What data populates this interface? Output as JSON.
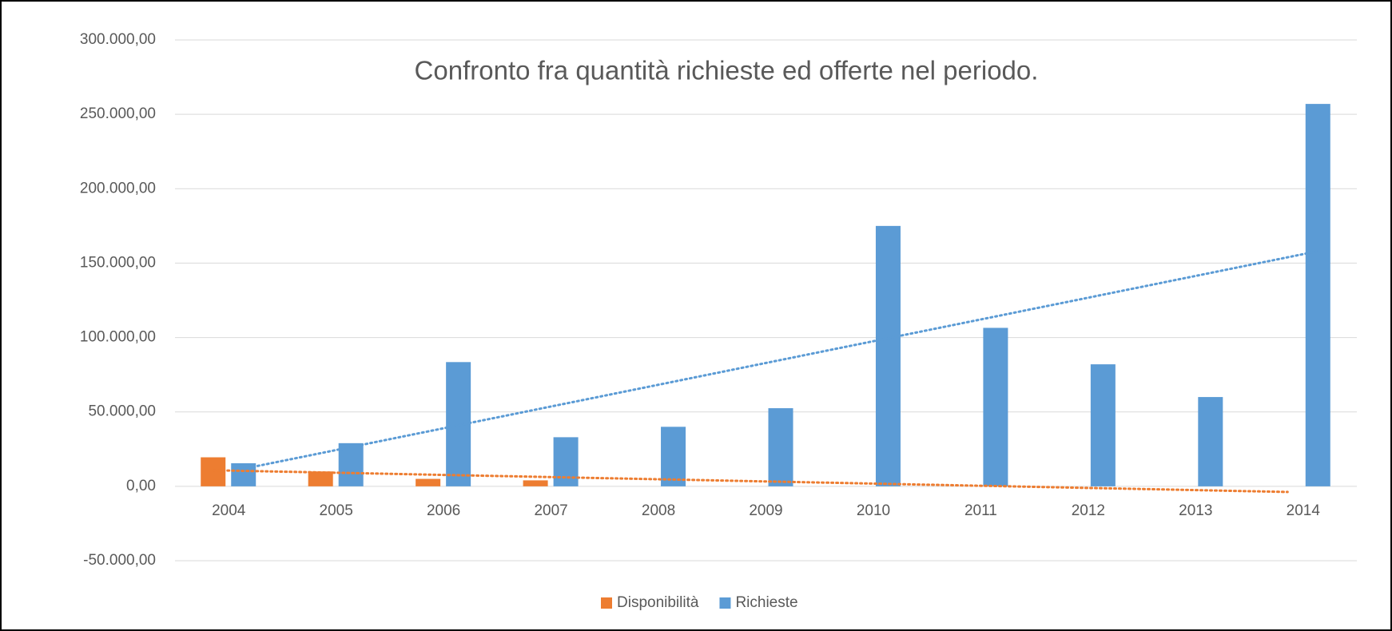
{
  "chart_data": {
    "type": "bar",
    "title": "Confronto fra quantità richieste ed offerte nel periodo.",
    "categories": [
      "2004",
      "2005",
      "2006",
      "2007",
      "2008",
      "2009",
      "2010",
      "2011",
      "2012",
      "2013",
      "2014"
    ],
    "series": [
      {
        "name": "Disponibilità",
        "color": "#ED7D31",
        "trendline": "linear",
        "values": [
          19500,
          10000,
          5000,
          4000,
          0,
          0,
          0,
          0,
          0,
          0,
          0
        ]
      },
      {
        "name": "Richieste",
        "color": "#5B9BD5",
        "trendline": "linear",
        "values": [
          15500,
          29000,
          83500,
          33000,
          40000,
          52500,
          175000,
          106500,
          82000,
          60000,
          257000
        ]
      }
    ],
    "ylim": [
      -50000,
      300000
    ],
    "yticks": [
      {
        "value": -50000,
        "label": "-50.000,00"
      },
      {
        "value": 0,
        "label": "0,00"
      },
      {
        "value": 50000,
        "label": "50.000,00"
      },
      {
        "value": 100000,
        "label": "100.000,00"
      },
      {
        "value": 150000,
        "label": "150.000,00"
      },
      {
        "value": 200000,
        "label": "200.000,00"
      },
      {
        "value": 250000,
        "label": "250.000,00"
      },
      {
        "value": 300000,
        "label": "300.000,00"
      }
    ],
    "grid": true,
    "legend": "bottom"
  }
}
